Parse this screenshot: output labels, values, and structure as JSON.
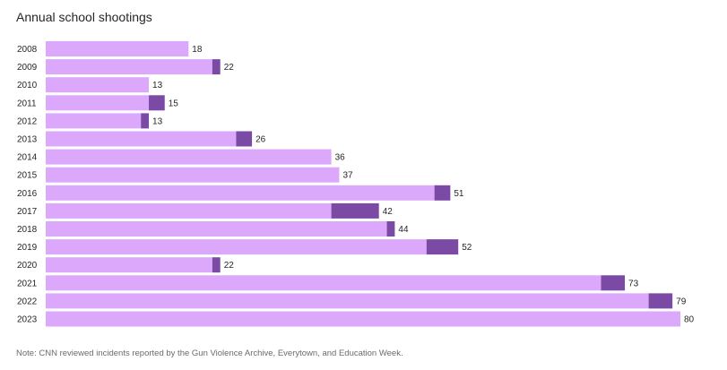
{
  "title": "Annual school shootings",
  "note": "Note: CNN reviewed incidents reported by the Gun Violence Archive, Everytown, and Education Week.",
  "colors": {
    "primary": "#dba8fb",
    "secondary": "#7b4aa5"
  },
  "chart_data": {
    "type": "bar",
    "orientation": "horizontal",
    "stacked": true,
    "categories": [
      "2008",
      "2009",
      "2010",
      "2011",
      "2012",
      "2013",
      "2014",
      "2015",
      "2016",
      "2017",
      "2018",
      "2019",
      "2020",
      "2021",
      "2022",
      "2023"
    ],
    "series": [
      {
        "values": [
          18,
          21,
          13,
          13,
          12,
          24,
          36,
          37,
          49,
          36,
          43,
          48,
          21,
          70,
          76,
          80
        ]
      },
      {
        "values": [
          0,
          1,
          0,
          2,
          1,
          2,
          0,
          0,
          2,
          6,
          1,
          4,
          1,
          3,
          3,
          0
        ]
      }
    ],
    "totals": [
      18,
      22,
      13,
      15,
      13,
      26,
      36,
      37,
      51,
      42,
      44,
      52,
      22,
      73,
      79,
      80
    ],
    "xlim": [
      0,
      80
    ],
    "grid": false,
    "legend": "none"
  }
}
